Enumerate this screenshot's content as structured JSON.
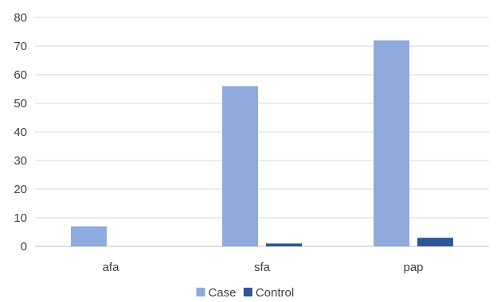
{
  "chart_data": {
    "type": "bar",
    "categories": [
      "afa",
      "sfa",
      "pap"
    ],
    "series": [
      {
        "name": "Case",
        "values": [
          7,
          56,
          72
        ],
        "color": "#8faadc"
      },
      {
        "name": "Control",
        "values": [
          0,
          1,
          3
        ],
        "color": "#2f5597"
      }
    ],
    "ylim": [
      0,
      80
    ],
    "yticks": [
      0,
      10,
      20,
      30,
      40,
      50,
      60,
      70,
      80
    ],
    "grid": true,
    "legend_position": "bottom",
    "title": "",
    "xlabel": "",
    "ylabel": ""
  }
}
